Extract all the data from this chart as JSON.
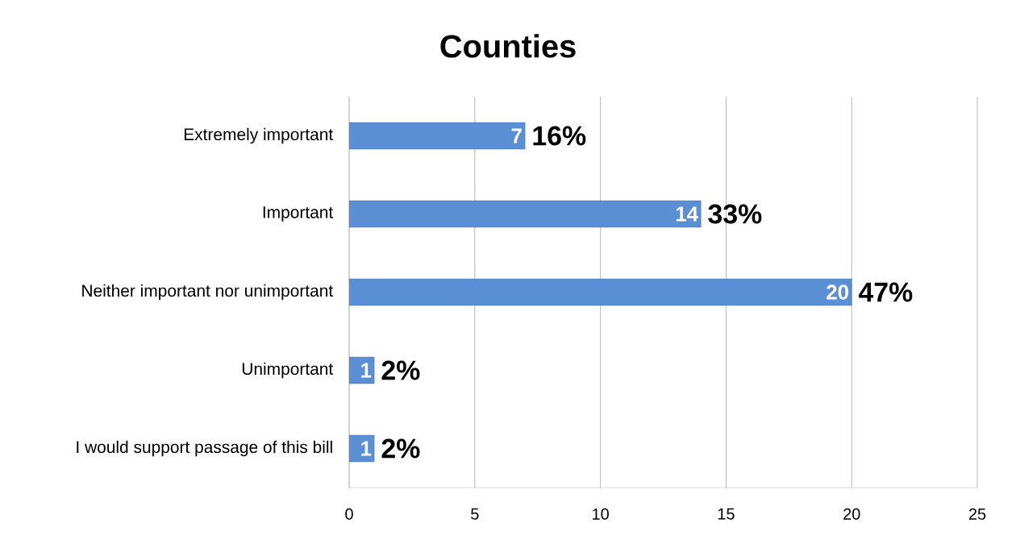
{
  "chart_data": {
    "type": "bar",
    "orientation": "horizontal",
    "title": "Counties",
    "categories": [
      "Extremely important",
      "Important",
      "Neither important nor unimportant",
      "Unimportant",
      "I would support passage of this bill"
    ],
    "values": [
      7,
      14,
      20,
      1,
      1
    ],
    "color": "#5a8fd6",
    "data_labels": true,
    "xlim": [
      0,
      25
    ],
    "xticks": [
      0,
      5,
      10,
      15,
      20,
      25
    ],
    "grid": "x",
    "annotations": [
      {
        "text": "16%",
        "x": 7,
        "y": "Extremely important"
      },
      {
        "text": "33%",
        "x": 14,
        "y": "Important"
      },
      {
        "text": "47%",
        "x": 20,
        "y": "Neither important nor unimportant"
      },
      {
        "text": "2%",
        "x": 1,
        "y": "Unimportant"
      },
      {
        "text": "2%",
        "x": 1,
        "y": "I would support passage of this bill"
      }
    ]
  }
}
